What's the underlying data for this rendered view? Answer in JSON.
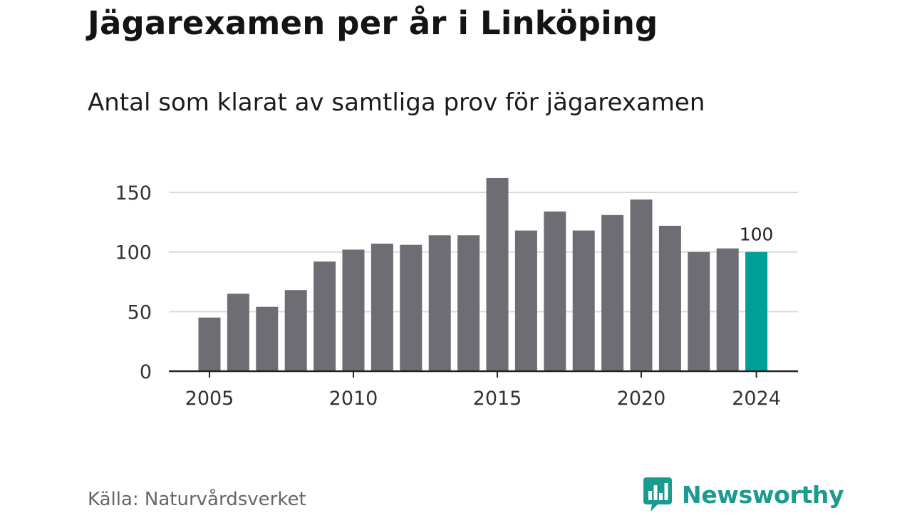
{
  "header": {
    "title": "Jägarexamen per år i Linköping",
    "subtitle": "Antal som klarat av samtliga prov för jägarexamen"
  },
  "footer": {
    "source": "Källa: Naturvårdsverket",
    "brand": "Newsworthy",
    "brand_icon": "newsworthy-bar-chart-logo-icon"
  },
  "colors": {
    "bar": "#6e6d74",
    "highlight": "#009e94",
    "grid": "#d9d9d9",
    "axis": "#222222",
    "brand": "#1a9b8f"
  },
  "chart_data": {
    "type": "bar",
    "categories": [
      "2005",
      "2006",
      "2007",
      "2008",
      "2009",
      "2010",
      "2011",
      "2012",
      "2013",
      "2014",
      "2015",
      "2016",
      "2017",
      "2018",
      "2019",
      "2020",
      "2021",
      "2022",
      "2023",
      "2024"
    ],
    "values": [
      45,
      65,
      54,
      68,
      92,
      102,
      107,
      106,
      114,
      114,
      162,
      118,
      134,
      118,
      131,
      144,
      122,
      100,
      103,
      100
    ],
    "highlight_category": "2024",
    "highlight_label": "100",
    "x_tick_labels": [
      "2005",
      "2010",
      "2015",
      "2020",
      "2024"
    ],
    "y_ticks": [
      0,
      50,
      100,
      150
    ],
    "ylim": [
      0,
      165
    ],
    "xlabel": "",
    "ylabel": "",
    "grid": true,
    "legend": false
  }
}
